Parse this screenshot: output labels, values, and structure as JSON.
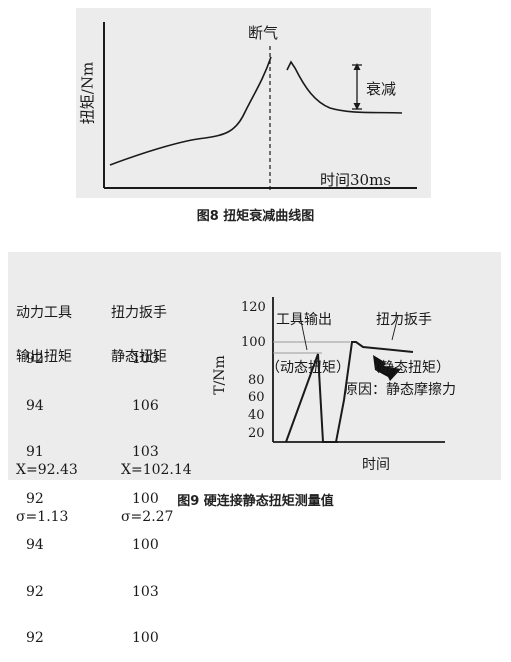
{
  "figure8": {
    "ylabel": "扭矩/Nm",
    "xlabel": "时间30ms",
    "cutoff_label": "断气",
    "decay_label": "衰减",
    "caption": "图8  扭矩衰减曲线图"
  },
  "figure9": {
    "col1_header": [
      "动力工具",
      "输出扭矩"
    ],
    "col2_header": [
      "扭力扳手",
      "静态扭矩"
    ],
    "rows": [
      [
        "92",
        "103"
      ],
      [
        "94",
        "106"
      ],
      [
        "91",
        "103"
      ],
      [
        "92",
        "100"
      ],
      [
        "94",
        "100"
      ],
      [
        "92",
        "103"
      ],
      [
        "92",
        "100"
      ]
    ],
    "mean": [
      "X=92.43",
      "X=102.14"
    ],
    "sigma": [
      "σ=1.13",
      "σ=2.27"
    ],
    "ylabel": "T/Nm",
    "xlabel": "时间",
    "yticks": [
      "120",
      "100",
      "80",
      "60",
      "40",
      "20"
    ],
    "annotation_tool": [
      "工具输出",
      "（动态扭矩）"
    ],
    "annotation_wrench": [
      "扭力扳手",
      "（静态扭矩）"
    ],
    "reason_label": "原因：静态摩擦力",
    "caption": "图9  硬连接静态扭矩测量值"
  }
}
